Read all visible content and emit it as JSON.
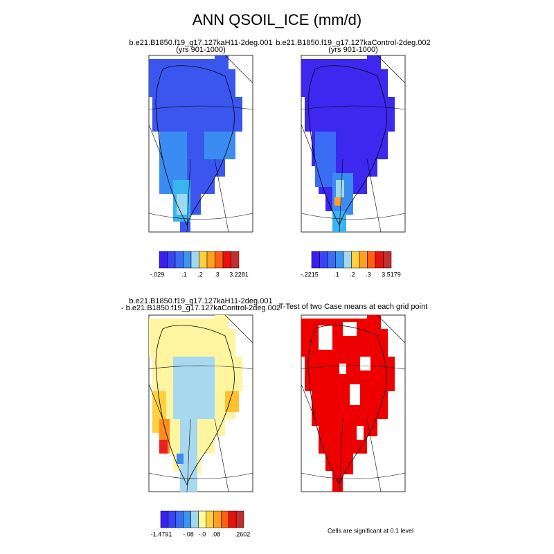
{
  "title": "ANN QSOIL_ICE (mm/d)",
  "panels": [
    {
      "title": [
        "b.e21.B1850.f19_g17.127kaH11-2deg.001",
        "(yrs 901-1000)"
      ],
      "colorbar_labels": [
        "-.029",
        ".1",
        ".2",
        ".3",
        "3.2281"
      ]
    },
    {
      "title": [
        "b.e21.B1850.f19_g17.127kaControl-2deg.002",
        "(yrs 901-1000)"
      ],
      "colorbar_labels": [
        "-.2215",
        ".1",
        ".2",
        ".3",
        "3.5179"
      ]
    },
    {
      "title": [
        "b.e21.B1850.f19_g17.127kaH11-2deg.001",
        "- b.e21.B1850.f19_g17.127kaControl-2deg.002"
      ],
      "colorbar_labels": [
        "-1.4791",
        "-.08",
        "-.0",
        ".08",
        ".2602"
      ]
    },
    {
      "title": [
        "T-Test of two Case means at each grid point"
      ]
    }
  ],
  "footnote": "Cells are significant at 0.1 level"
}
